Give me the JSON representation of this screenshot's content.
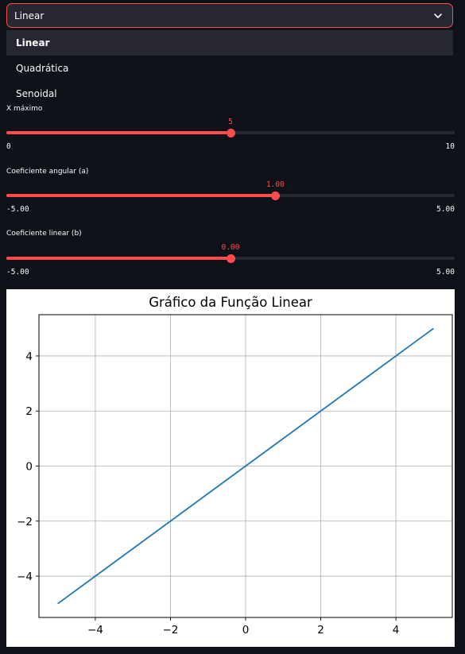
{
  "select": {
    "value": "Linear",
    "options": [
      "Linear",
      "Quadrática",
      "Senoidal"
    ]
  },
  "sliders": [
    {
      "label": "X máximo",
      "value": "5",
      "min": "0",
      "max": "10",
      "fraction": 0.5
    },
    {
      "label": "Coeficiente angular (a)",
      "value": "1.00",
      "min": "-5.00",
      "max": "5.00",
      "fraction": 0.6
    },
    {
      "label": "Coeficiente linear (b)",
      "value": "0.00",
      "min": "-5.00",
      "max": "5.00",
      "fraction": 0.5
    }
  ],
  "colors": {
    "accent": "#ff4b4b",
    "background": "#0e1117",
    "line": "#1f77b4"
  },
  "chart_data": {
    "type": "line",
    "title": "Gráfico da Função Linear",
    "xlabel": "",
    "ylabel": "",
    "x": [
      -5,
      5
    ],
    "y": [
      -5,
      5
    ],
    "xlim": [
      -5.5,
      5.5
    ],
    "ylim": [
      -5.5,
      5.5
    ],
    "xticks": [
      -4,
      -2,
      0,
      2,
      4
    ],
    "yticks": [
      -4,
      -2,
      0,
      2,
      4
    ],
    "xtick_labels": [
      "−4",
      "−2",
      "0",
      "2",
      "4"
    ],
    "ytick_labels": [
      "−4",
      "−2",
      "0",
      "2",
      "4"
    ],
    "grid": true
  }
}
